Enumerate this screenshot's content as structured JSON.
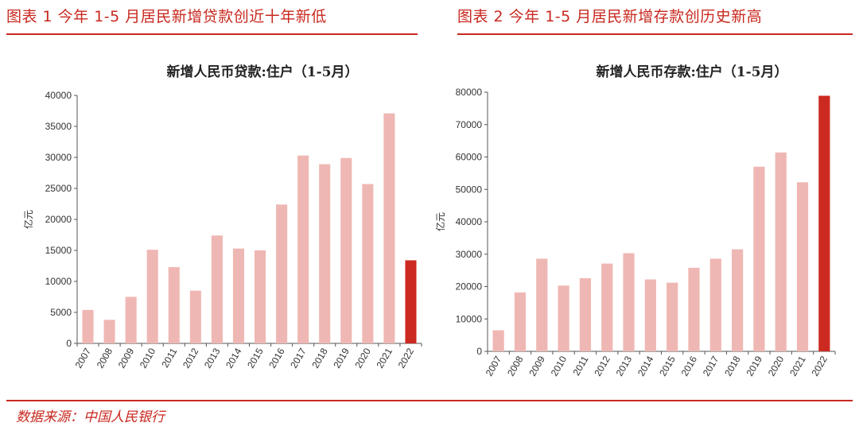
{
  "figures": [
    {
      "caption": "图表 1  今年 1-5 月居民新增贷款创近十年新低",
      "chart_data": {
        "type": "bar",
        "title": "新增人民币贷款:住户（1-5月）",
        "ylabel": "亿元",
        "xlabel": "",
        "categories": [
          "2007",
          "2008",
          "2009",
          "2010",
          "2011",
          "2012",
          "2013",
          "2014",
          "2015",
          "2016",
          "2017",
          "2018",
          "2019",
          "2020",
          "2021",
          "2022"
        ],
        "values": [
          5400,
          3800,
          7500,
          15100,
          12300,
          8500,
          17400,
          15300,
          15000,
          22400,
          30300,
          28900,
          29900,
          25700,
          37100,
          13400
        ],
        "highlight_index": 15,
        "ylim": [
          0,
          40000
        ],
        "yticks": [
          0,
          5000,
          10000,
          15000,
          20000,
          25000,
          30000,
          35000,
          40000
        ],
        "colors": {
          "bar": "#efb7b3",
          "highlight": "#cc2a21"
        }
      }
    },
    {
      "caption": "图表 2  今年 1-5 月居民新增存款创历史新高",
      "chart_data": {
        "type": "bar",
        "title": "新增人民币存款:住户（1-5月）",
        "ylabel": "亿元",
        "xlabel": "",
        "categories": [
          "2007",
          "2008",
          "2009",
          "2010",
          "2011",
          "2012",
          "2013",
          "2014",
          "2015",
          "2016",
          "2017",
          "2018",
          "2019",
          "2020",
          "2021",
          "2022"
        ],
        "values": [
          6500,
          18200,
          28600,
          20300,
          22600,
          27100,
          30300,
          22200,
          21200,
          25800,
          28600,
          31500,
          57000,
          61400,
          52200,
          78900
        ],
        "highlight_index": 15,
        "ylim": [
          0,
          80000
        ],
        "yticks": [
          0,
          10000,
          20000,
          30000,
          40000,
          50000,
          60000,
          70000,
          80000
        ],
        "colors": {
          "bar": "#efb7b3",
          "highlight": "#cc2a21"
        }
      }
    }
  ],
  "source": "数据来源：中国人民银行"
}
